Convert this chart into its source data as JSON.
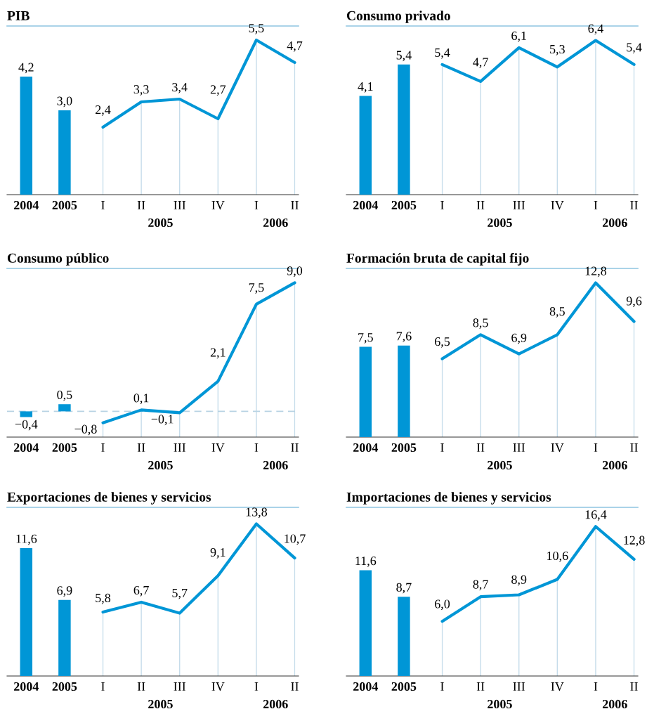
{
  "chart_data": [
    {
      "type": "bar",
      "grid": "x",
      "title": "PIB",
      "categories": [
        "2004",
        "2005",
        "I",
        "II",
        "III",
        "IV",
        "I",
        "II"
      ],
      "ylim": [
        0,
        6
      ],
      "annotations": [
        "2005",
        "2006"
      ],
      "series": [
        {
          "type": "bar",
          "color": "#0096d6",
          "values": [
            4.2,
            3.0,
            null,
            null,
            null,
            null,
            null,
            null
          ],
          "value_labels": [
            "4,2",
            "3,0",
            null,
            null,
            null,
            null,
            null,
            null
          ]
        },
        {
          "type": "line",
          "color": "#0096d6",
          "values": [
            null,
            null,
            2.4,
            3.3,
            3.4,
            2.7,
            5.5,
            4.7
          ],
          "value_labels": [
            null,
            null,
            "2,4",
            "3,3",
            "3,4",
            "2,7",
            "5,5",
            "4,7"
          ]
        }
      ]
    },
    {
      "type": "bar",
      "grid": "x",
      "title": "Consumo privado",
      "categories": [
        "2004",
        "2005",
        "I",
        "II",
        "III",
        "IV",
        "I",
        "II"
      ],
      "ylim": [
        0,
        7
      ],
      "annotations": [
        "2005",
        "2006"
      ],
      "series": [
        {
          "type": "bar",
          "color": "#0096d6",
          "values": [
            4.1,
            5.4,
            null,
            null,
            null,
            null,
            null,
            null
          ],
          "value_labels": [
            "4,1",
            "5,4",
            null,
            null,
            null,
            null,
            null,
            null
          ]
        },
        {
          "type": "line",
          "color": "#0096d6",
          "values": [
            null,
            null,
            5.4,
            4.7,
            6.1,
            5.3,
            6.4,
            5.4
          ],
          "value_labels": [
            null,
            null,
            "5,4",
            "4,7",
            "6,1",
            "5,3",
            "6,4",
            "5,4"
          ]
        }
      ]
    },
    {
      "type": "bar",
      "grid": "x",
      "title": "Consumo público",
      "categories": [
        "2004",
        "2005",
        "I",
        "II",
        "III",
        "IV",
        "I",
        "II"
      ],
      "ylim": [
        -1.8,
        10
      ],
      "annotations": [
        "2005",
        "2006"
      ],
      "ref_lines": [
        {
          "axis": "y",
          "value": 0,
          "color": "#b8d3e3",
          "line_style": "dashed"
        }
      ],
      "series": [
        {
          "type": "bar",
          "color": "#0096d6",
          "values": [
            -0.4,
            0.5,
            null,
            null,
            null,
            null,
            null,
            null
          ],
          "value_labels": [
            "−0,4",
            "0,5",
            null,
            null,
            null,
            null,
            null,
            null
          ]
        },
        {
          "type": "line",
          "color": "#0096d6",
          "values": [
            null,
            null,
            -0.8,
            0.1,
            -0.1,
            2.1,
            7.5,
            9.0
          ],
          "value_labels": [
            null,
            null,
            "−0,8",
            "0,1",
            "−0,1",
            "2,1",
            "7,5",
            "9,0"
          ]
        }
      ]
    },
    {
      "type": "bar",
      "grid": "x",
      "title": "Formación bruta de capital fijo",
      "categories": [
        "2004",
        "2005",
        "I",
        "II",
        "III",
        "IV",
        "I",
        "II"
      ],
      "ylim": [
        0,
        14
      ],
      "annotations": [
        "2005",
        "2006"
      ],
      "series": [
        {
          "type": "bar",
          "color": "#0096d6",
          "values": [
            7.5,
            7.6,
            null,
            null,
            null,
            null,
            null,
            null
          ],
          "value_labels": [
            "7,5",
            "7,6",
            null,
            null,
            null,
            null,
            null,
            null
          ]
        },
        {
          "type": "line",
          "color": "#0096d6",
          "values": [
            null,
            null,
            6.5,
            8.5,
            6.9,
            8.5,
            12.8,
            9.6
          ],
          "value_labels": [
            null,
            null,
            "6,5",
            "8,5",
            "6,9",
            "8,5",
            "12,8",
            "9,6"
          ]
        }
      ]
    },
    {
      "type": "bar",
      "grid": "x",
      "title": "Exportaciones de bienes y servicios",
      "categories": [
        "2004",
        "2005",
        "I",
        "II",
        "III",
        "IV",
        "I",
        "II"
      ],
      "ylim": [
        0,
        15.3
      ],
      "annotations": [
        "2005",
        "2006"
      ],
      "series": [
        {
          "type": "bar",
          "color": "#0096d6",
          "values": [
            11.6,
            6.9,
            null,
            null,
            null,
            null,
            null,
            null
          ],
          "value_labels": [
            "11,6",
            "6,9",
            null,
            null,
            null,
            null,
            null,
            null
          ]
        },
        {
          "type": "line",
          "color": "#0096d6",
          "values": [
            null,
            null,
            5.8,
            6.7,
            5.7,
            9.1,
            13.8,
            10.7
          ],
          "value_labels": [
            null,
            null,
            "5,8",
            "6,7",
            "5,7",
            "9,1",
            "13,8",
            "10,7"
          ]
        }
      ]
    },
    {
      "type": "bar",
      "grid": "x",
      "title": "Importaciones de bienes y servicios",
      "categories": [
        "2004",
        "2005",
        "I",
        "II",
        "III",
        "IV",
        "I",
        "II"
      ],
      "ylim": [
        0,
        18.5
      ],
      "annotations": [
        "2005",
        "2006"
      ],
      "series": [
        {
          "type": "bar",
          "color": "#0096d6",
          "values": [
            11.6,
            8.7,
            null,
            null,
            null,
            null,
            null,
            null
          ],
          "value_labels": [
            "11,6",
            "8,7",
            null,
            null,
            null,
            null,
            null,
            null
          ]
        },
        {
          "type": "line",
          "color": "#0096d6",
          "values": [
            null,
            null,
            6.0,
            8.7,
            8.9,
            10.6,
            16.4,
            12.8
          ],
          "value_labels": [
            null,
            null,
            "6,0",
            "8,7",
            "8,9",
            "10,6",
            "16,4",
            "12,8"
          ]
        }
      ]
    }
  ]
}
